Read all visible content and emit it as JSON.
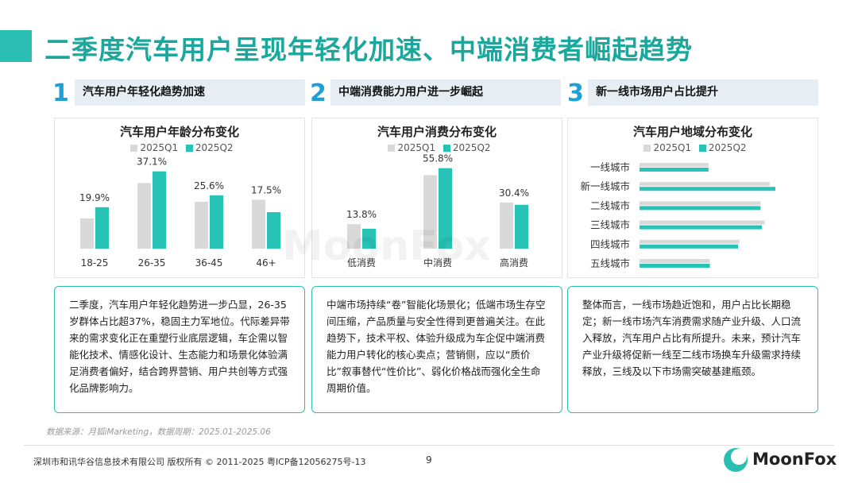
{
  "page_title": "二季度汽车用户呈现年轻化加速、中端消费者崛起趋势",
  "colors": {
    "accent": "#2bbfb3",
    "q1": "#d9d9d9",
    "q2": "#27c3b6",
    "num": "#1f9fd8"
  },
  "sections": [
    {
      "num": "1",
      "heading": "汽车用户年轻化趋势加速",
      "text": "二季度，汽车用户年轻化趋势进一步凸显，26-35岁群体占比超37%，稳固主力军地位。代际差异带来的需求变化正在重塑行业底层逻辑，车企需以智能化技术、情感化设计、生态能力和场景化体验满足消费者偏好，结合跨界营销、用户共创等方式强化品牌影响力。"
    },
    {
      "num": "2",
      "heading": "中端消费能力用户进一步崛起",
      "text": "中端市场持续“卷”智能化场景化；低端市场生存空间压缩，产品质量与安全性得到更普遍关注。在此趋势下，技术平权、体验升级成为车企促中端消费能力用户转化的核心卖点；营销侧，应以“质价比”叙事替代“性价比”、弱化价格战而强化全生命周期价值。"
    },
    {
      "num": "3",
      "heading": "新一线市场用户占比提升",
      "text": "整体而言，一线市场趋近饱和，用户占比长期稳定；新一线市场汽车消费需求随产业升级、人口流入释放，汽车用户占比有所提升。未来，预计汽车产业升级将促新一线至二线市场换车升级需求持续释放，三线及以下市场需突破基建瓶颈。"
    }
  ],
  "legend": {
    "q1": "2025Q1",
    "q2": "2025Q2"
  },
  "chart_data": [
    {
      "type": "bar",
      "title": "汽车用户年龄分布变化",
      "categories": [
        "18-25",
        "26-35",
        "36-45",
        "46+"
      ],
      "series": [
        {
          "name": "2025Q1",
          "values": [
            14.5,
            31.5,
            22.5,
            23.5
          ]
        },
        {
          "name": "2025Q2",
          "values": [
            19.9,
            37.1,
            25.6,
            17.5
          ]
        }
      ],
      "labels": [
        "19.9%",
        "37.1%",
        "25.6%",
        "17.5%"
      ],
      "ylim": [
        0,
        45
      ]
    },
    {
      "type": "bar",
      "title": "汽车用户消费分布变化",
      "categories": [
        "低消费",
        "中消费",
        "高消费"
      ],
      "series": [
        {
          "name": "2025Q1",
          "values": [
            17.0,
            51.0,
            32.0
          ]
        },
        {
          "name": "2025Q2",
          "values": [
            13.8,
            55.8,
            30.4
          ]
        }
      ],
      "labels": [
        "13.8%",
        "55.8%",
        "30.4%"
      ],
      "ylim": [
        0,
        65
      ]
    },
    {
      "type": "bar",
      "orientation": "horizontal",
      "title": "汽车用户地域分布变化",
      "categories": [
        "一线城市",
        "新一线城市",
        "二线城市",
        "三线城市",
        "四线城市",
        "五线城市"
      ],
      "series": [
        {
          "name": "2025Q1",
          "values": [
            9.8,
            18.5,
            17.2,
            17.8,
            14.2,
            10.0
          ]
        },
        {
          "name": "2025Q2",
          "values": [
            9.8,
            19.3,
            17.2,
            17.4,
            14.0,
            10.0
          ]
        }
      ],
      "xlim": [
        0,
        21
      ]
    }
  ],
  "source": "数据来源：月狐iMarketing，数据周期：2025.01-2025.06",
  "watermark": "MoonFox",
  "footer": "深圳市和讯华谷信息技术有限公司 版权所有 © 2011-2025 粤ICP备12056275号-13",
  "page_number": "9",
  "logo_text": "MoonFox"
}
